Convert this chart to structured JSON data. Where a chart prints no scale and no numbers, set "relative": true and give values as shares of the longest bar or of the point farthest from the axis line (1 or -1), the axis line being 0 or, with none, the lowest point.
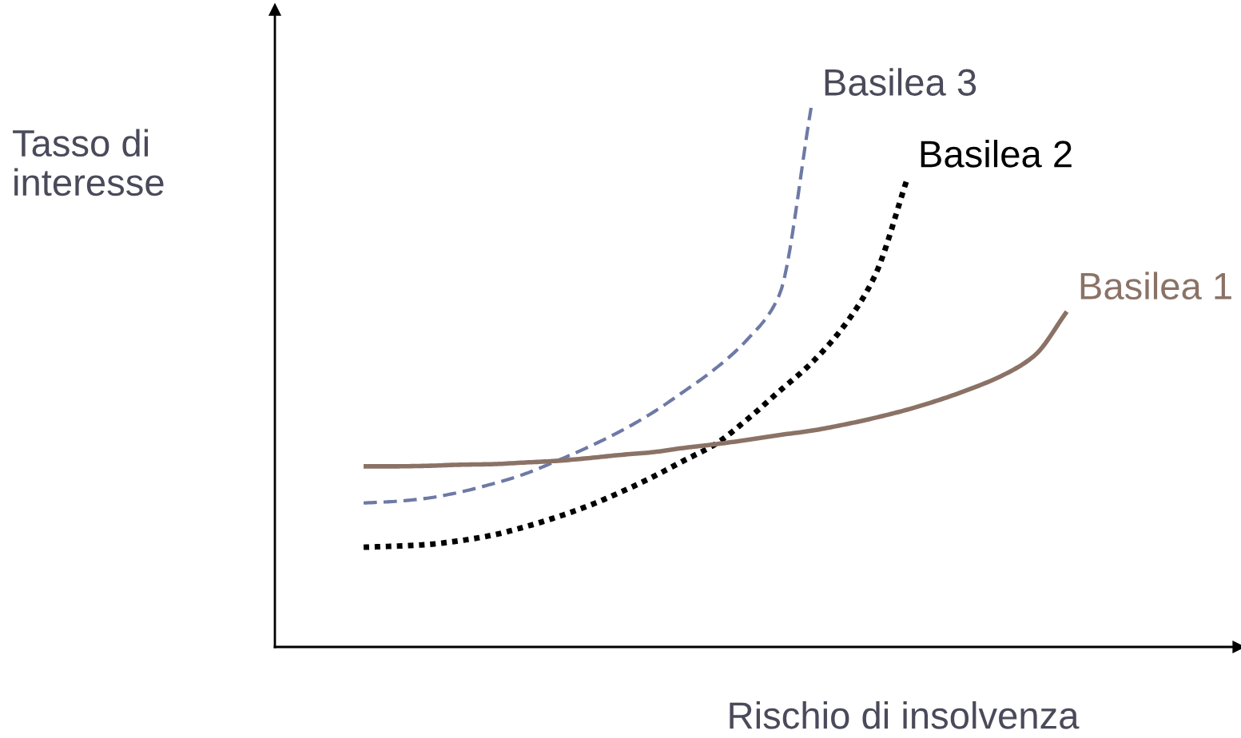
{
  "chart_data": {
    "type": "line",
    "relative": true,
    "xlabel": "Rischio di insolvenza",
    "ylabel": "Tasso di\ninteresse",
    "legend": false,
    "marker": "none",
    "categories": [
      null,
      null,
      null,
      null,
      null,
      null,
      null,
      null,
      null,
      null,
      null,
      null,
      null,
      null,
      null,
      null,
      null,
      null,
      null,
      null,
      null,
      null,
      null
    ],
    "series": [
      {
        "name": "Basilea 3",
        "color": "#6e7aa5",
        "line_style": "dashed",
        "values": [
          0.267,
          0.27,
          0.276,
          0.287,
          0.302,
          0.32,
          0.344,
          0.37,
          0.399,
          0.433,
          0.473,
          0.516,
          0.57,
          0.652,
          1.0,
          null,
          null,
          null,
          null,
          null,
          null,
          null,
          null
        ]
      },
      {
        "name": "Basilea 2",
        "color": "#000000",
        "line_style": "dotted",
        "values": [
          0.185,
          0.187,
          0.19,
          0.197,
          0.207,
          0.222,
          0.24,
          0.261,
          0.286,
          0.314,
          0.345,
          0.376,
          0.422,
          0.474,
          0.526,
          0.593,
          0.689,
          0.867,
          null,
          null,
          null,
          null,
          null
        ]
      },
      {
        "name": "Basilea 1",
        "color": "#8b7266",
        "line_style": "solid",
        "values": [
          0.335,
          0.335,
          0.336,
          0.338,
          0.339,
          0.342,
          0.345,
          0.35,
          0.356,
          0.361,
          0.369,
          0.376,
          0.384,
          0.393,
          0.401,
          0.412,
          0.425,
          0.44,
          0.458,
          0.479,
          0.504,
          0.541,
          0.622
        ]
      }
    ]
  }
}
